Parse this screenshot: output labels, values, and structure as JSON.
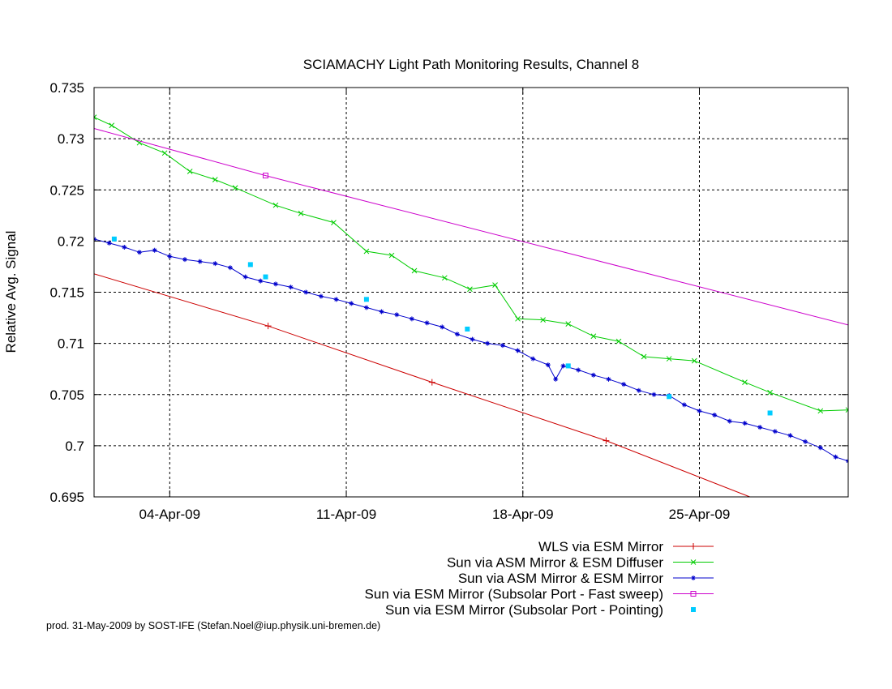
{
  "chart_data": {
    "type": "line",
    "title": "SCIAMACHY Light Path Monitoring Results, Channel 8",
    "ylabel": "Relative Avg. Signal",
    "xlabel": "",
    "x_unit": "day of month (Apr-2009)",
    "xlim": [
      1.0,
      30.9
    ],
    "ylim": [
      0.695,
      0.735
    ],
    "grid": true,
    "legend_placement": "bottom",
    "x_ticks": [
      {
        "x": 4,
        "label": "04-Apr-09"
      },
      {
        "x": 11,
        "label": "11-Apr-09"
      },
      {
        "x": 18,
        "label": "18-Apr-09"
      },
      {
        "x": 25,
        "label": "25-Apr-09"
      }
    ],
    "y_ticks": [
      {
        "y": 0.695,
        "label": "0.695"
      },
      {
        "y": 0.7,
        "label": "0.7"
      },
      {
        "y": 0.705,
        "label": "0.705"
      },
      {
        "y": 0.71,
        "label": "0.71"
      },
      {
        "y": 0.715,
        "label": "0.715"
      },
      {
        "y": 0.72,
        "label": "0.72"
      },
      {
        "y": 0.725,
        "label": "0.725"
      },
      {
        "y": 0.73,
        "label": "0.73"
      },
      {
        "y": 0.735,
        "label": "0.735"
      }
    ],
    "series": [
      {
        "name": "WLS via ESM Mirror",
        "color": "#cc0000",
        "style": "line-points",
        "marker": "plus",
        "x": [
          1.0,
          7.9,
          14.4,
          21.3,
          27.0
        ],
        "y": [
          0.7168,
          0.7117,
          0.7062,
          0.7005,
          0.695
        ],
        "marker_x": [
          7.9,
          14.4,
          21.3
        ]
      },
      {
        "name": "Sun via ASM Mirror & ESM Diffuser",
        "color": "#00cc00",
        "style": "line-points",
        "marker": "cross",
        "x": [
          1.0,
          1.7,
          2.8,
          3.8,
          4.8,
          5.8,
          6.6,
          8.2,
          9.2,
          10.5,
          11.8,
          12.8,
          13.7,
          14.9,
          15.9,
          16.9,
          17.8,
          18.8,
          19.8,
          20.8,
          21.8,
          22.8,
          23.8,
          24.8,
          26.8,
          27.8,
          29.8,
          30.9
        ],
        "y": [
          0.7321,
          0.7313,
          0.7296,
          0.7286,
          0.7268,
          0.726,
          0.7252,
          0.7235,
          0.7227,
          0.7218,
          0.719,
          0.7186,
          0.7171,
          0.7164,
          0.7153,
          0.7157,
          0.7124,
          0.7123,
          0.7119,
          0.7107,
          0.7102,
          0.7087,
          0.7085,
          0.7083,
          0.7062,
          0.7052,
          0.7034,
          0.7035
        ]
      },
      {
        "name": "Sun via ASM Mirror & ESM Mirror",
        "color": "#0000cc",
        "style": "line-points",
        "marker": "star",
        "x": [
          1.0,
          1.6,
          2.2,
          2.8,
          3.4,
          4.0,
          4.6,
          5.2,
          5.8,
          6.4,
          7.0,
          7.6,
          8.2,
          8.8,
          9.4,
          10.0,
          10.6,
          11.2,
          11.8,
          12.4,
          13.0,
          13.6,
          14.2,
          14.8,
          15.4,
          16.0,
          16.6,
          17.2,
          17.8,
          18.4,
          19.0,
          19.3,
          19.6,
          20.2,
          20.8,
          21.4,
          22.0,
          22.6,
          23.2,
          23.8,
          24.4,
          25.0,
          25.6,
          26.2,
          26.8,
          27.4,
          28.0,
          28.6,
          29.2,
          29.8,
          30.4,
          30.9
        ],
        "y": [
          0.7202,
          0.7198,
          0.7194,
          0.7189,
          0.7191,
          0.7185,
          0.7182,
          0.718,
          0.7178,
          0.7174,
          0.7165,
          0.7161,
          0.7158,
          0.7155,
          0.715,
          0.7146,
          0.7143,
          0.7139,
          0.7135,
          0.7131,
          0.7128,
          0.7124,
          0.712,
          0.7116,
          0.7109,
          0.7104,
          0.71,
          0.7098,
          0.7093,
          0.7085,
          0.7079,
          0.7065,
          0.7078,
          0.7074,
          0.7069,
          0.7065,
          0.706,
          0.7054,
          0.705,
          0.7049,
          0.704,
          0.7034,
          0.703,
          0.7024,
          0.7022,
          0.7018,
          0.7014,
          0.701,
          0.7004,
          0.6998,
          0.6989,
          0.6985
        ]
      },
      {
        "name": "Sun via ESM Mirror (Subsolar Port - Fast sweep)",
        "color": "#cc00cc",
        "style": "line-points",
        "marker": "square-open",
        "x": [
          1.0,
          7.8,
          30.9
        ],
        "y": [
          0.731,
          0.7264,
          0.7118
        ],
        "marker_x": [
          7.8
        ]
      },
      {
        "name": "Sun via ESM Mirror (Subsolar Port - Pointing)",
        "color": "#00ccff",
        "style": "points",
        "marker": "square-filled",
        "x": [
          1.8,
          7.2,
          7.8,
          11.8,
          15.8,
          19.8,
          23.8,
          27.8
        ],
        "y": [
          0.7202,
          0.7177,
          0.7165,
          0.7143,
          0.7114,
          0.7078,
          0.7048,
          0.7032
        ]
      }
    ]
  },
  "footer": {
    "credit": "prod. 31-May-2009 by SOST-IFE (Stefan.Noel@iup.physik.uni-bremen.de)"
  }
}
